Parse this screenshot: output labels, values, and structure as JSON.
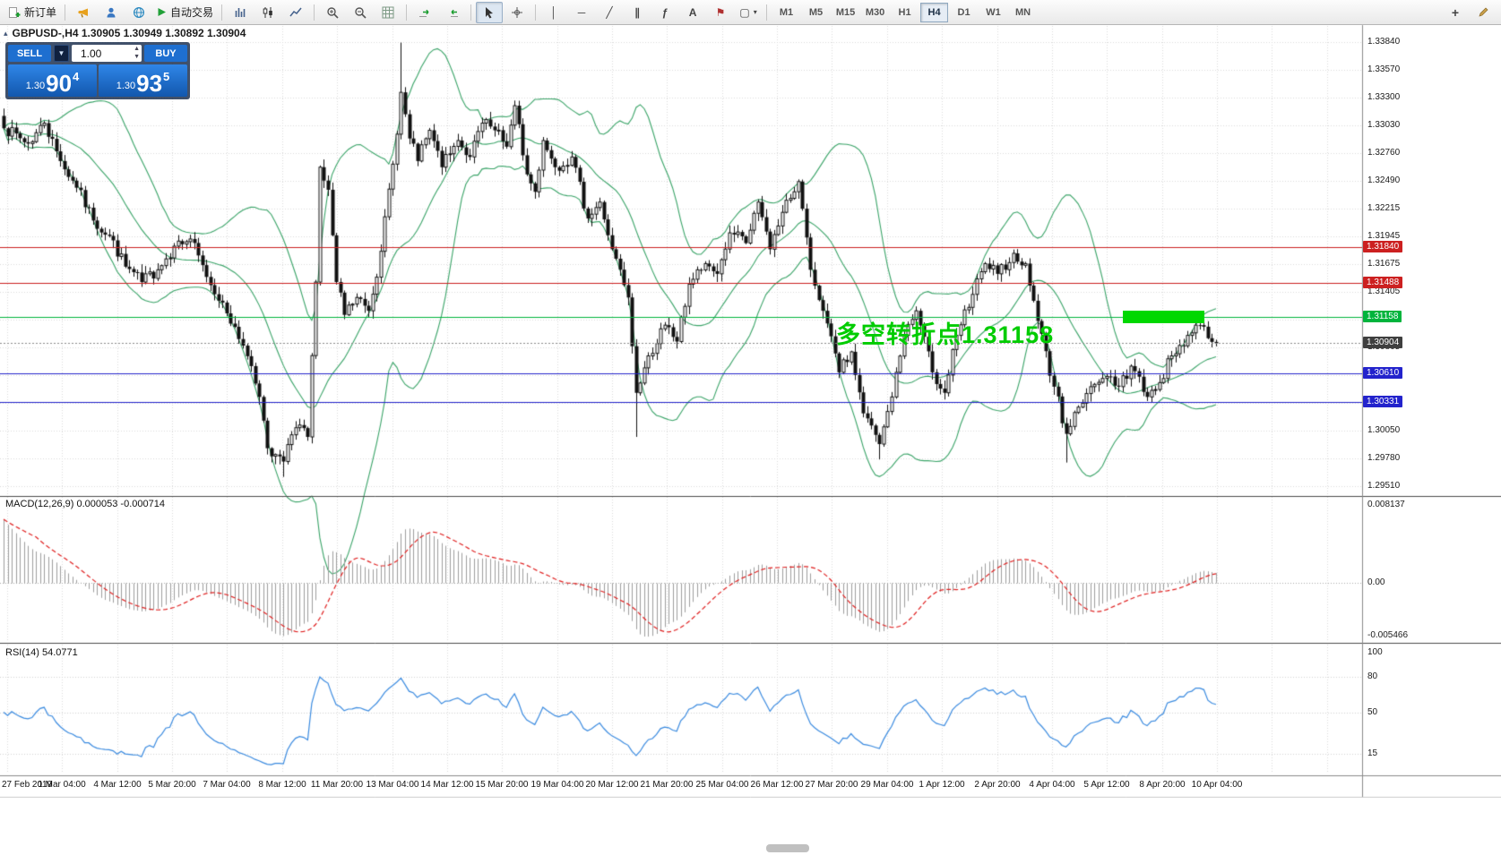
{
  "toolbar": {
    "new_order_label": "新订单",
    "autotrading_label": "自动交易",
    "timeframes": [
      "M1",
      "M5",
      "M15",
      "M30",
      "H1",
      "H4",
      "D1",
      "W1",
      "MN"
    ],
    "active_timeframe": "H4"
  },
  "one_click": {
    "sell_label": "SELL",
    "buy_label": "BUY",
    "volume": "1.00",
    "bid": {
      "prefix": "1.30",
      "big": "90",
      "sup": "4"
    },
    "ask": {
      "prefix": "1.30",
      "big": "93",
      "sup": "5"
    }
  },
  "chart_title": "GBPUSD-,H4 1.30905 1.30949 1.30892 1.30904",
  "chart_data": {
    "type": "candlestick",
    "symbol": "GBPUSD-",
    "timeframe": "H4",
    "ohlc": {
      "open": 1.30905,
      "high": 1.30949,
      "low": 1.30892,
      "close": 1.30904
    },
    "y_range": [
      1.2951,
      1.3384
    ],
    "y_ticks": [
      "1.33840",
      "1.33570",
      "1.33300",
      "1.33030",
      "1.32760",
      "1.32490",
      "1.32215",
      "1.31945",
      "1.31675",
      "1.31405",
      "1.31135",
      "1.30865",
      "1.30595",
      "1.30325",
      "1.30050",
      "1.29780",
      "1.29510"
    ],
    "x_labels": [
      "27 Feb 2019",
      "1 Mar 04:00",
      "4 Mar 12:00",
      "5 Mar 20:00",
      "7 Mar 04:00",
      "8 Mar 12:00",
      "11 Mar 20:00",
      "13 Mar 04:00",
      "14 Mar 12:00",
      "15 Mar 20:00",
      "19 Mar 04:00",
      "20 Mar 12:00",
      "21 Mar 20:00",
      "25 Mar 04:00",
      "26 Mar 12:00",
      "27 Mar 20:00",
      "29 Mar 04:00",
      "1 Apr 12:00",
      "2 Apr 20:00",
      "4 Apr 04:00",
      "5 Apr 12:00",
      "8 Apr 20:00",
      "10 Apr 04:00"
    ],
    "bars": 300,
    "close_anchors": [
      [
        0,
        1.33
      ],
      [
        6,
        1.3285
      ],
      [
        10,
        1.3305
      ],
      [
        14,
        1.3268
      ],
      [
        18,
        1.3242
      ],
      [
        22,
        1.321
      ],
      [
        26,
        1.3195
      ],
      [
        30,
        1.3165
      ],
      [
        34,
        1.315
      ],
      [
        38,
        1.3162
      ],
      [
        42,
        1.3185
      ],
      [
        46,
        1.3192
      ],
      [
        50,
        1.3155
      ],
      [
        54,
        1.313
      ],
      [
        59,
        1.3088
      ],
      [
        63,
        1.3038
      ],
      [
        65,
        1.2988
      ],
      [
        69,
        1.2975
      ],
      [
        72,
        1.3008
      ],
      [
        75,
        1.2999
      ],
      [
        77,
        1.315
      ],
      [
        78,
        1.3262
      ],
      [
        80,
        1.324
      ],
      [
        82,
        1.315
      ],
      [
        84,
        1.3118
      ],
      [
        87,
        1.3135
      ],
      [
        90,
        1.3122
      ],
      [
        93,
        1.318
      ],
      [
        96,
        1.3265
      ],
      [
        98,
        1.3335
      ],
      [
        100,
        1.329
      ],
      [
        102,
        1.3268
      ],
      [
        105,
        1.3298
      ],
      [
        108,
        1.3262
      ],
      [
        112,
        1.3288
      ],
      [
        115,
        1.3272
      ],
      [
        118,
        1.3305
      ],
      [
        121,
        1.3298
      ],
      [
        124,
        1.3282
      ],
      [
        126,
        1.3322
      ],
      [
        129,
        1.3255
      ],
      [
        131,
        1.3238
      ],
      [
        133,
        1.3288
      ],
      [
        136,
        1.3262
      ],
      [
        140,
        1.3272
      ],
      [
        144,
        1.3212
      ],
      [
        147,
        1.3228
      ],
      [
        150,
        1.3182
      ],
      [
        154,
        1.3135
      ],
      [
        156,
        1.3042
      ],
      [
        159,
        1.3078
      ],
      [
        163,
        1.3108
      ],
      [
        166,
        1.3092
      ],
      [
        169,
        1.3148
      ],
      [
        173,
        1.3168
      ],
      [
        176,
        1.3158
      ],
      [
        179,
        1.3198
      ],
      [
        183,
        1.3188
      ],
      [
        186,
        1.3228
      ],
      [
        189,
        1.3182
      ],
      [
        192,
        1.3218
      ],
      [
        196,
        1.3248
      ],
      [
        199,
        1.3162
      ],
      [
        202,
        1.3122
      ],
      [
        206,
        1.3062
      ],
      [
        209,
        1.3082
      ],
      [
        212,
        1.3022
      ],
      [
        216,
        1.2992
      ],
      [
        219,
        1.3038
      ],
      [
        222,
        1.3098
      ],
      [
        225,
        1.3122
      ],
      [
        229,
        1.3062
      ],
      [
        232,
        1.3042
      ],
      [
        235,
        1.3098
      ],
      [
        239,
        1.3138
      ],
      [
        242,
        1.3168
      ],
      [
        245,
        1.3158
      ],
      [
        249,
        1.3178
      ],
      [
        252,
        1.3168
      ],
      [
        255,
        1.3112
      ],
      [
        259,
        1.3048
      ],
      [
        262,
        1.3002
      ],
      [
        265,
        1.3028
      ],
      [
        268,
        1.3048
      ],
      [
        272,
        1.3058
      ],
      [
        275,
        1.3048
      ],
      [
        278,
        1.3068
      ],
      [
        282,
        1.3038
      ],
      [
        285,
        1.3052
      ],
      [
        288,
        1.3078
      ],
      [
        292,
        1.3098
      ],
      [
        295,
        1.3108
      ],
      [
        299,
        1.30904
      ]
    ],
    "extreme_wicks": [
      [
        69,
        "low",
        1.296
      ],
      [
        98,
        "high",
        1.33835
      ],
      [
        156,
        "low",
        1.2999
      ],
      [
        216,
        "low",
        1.2977
      ],
      [
        262,
        "low",
        1.2974
      ]
    ],
    "current_price": 1.30904,
    "current_price_label_color": "#3f3f3f",
    "levels": [
      {
        "price": 1.3184,
        "color": "#cc2020"
      },
      {
        "price": 1.31488,
        "color": "#cc2020"
      },
      {
        "price": 1.31158,
        "color": "#00b43c"
      },
      {
        "price": 1.3061,
        "color": "#2323cc"
      },
      {
        "price": 1.30331,
        "color": "#2323cc"
      }
    ],
    "highlight_rect": {
      "bar_start": 276,
      "bar_end": 296,
      "price_top": 1.31225,
      "price_bottom": 1.311,
      "color": "#00d800"
    },
    "annotation": {
      "text": "多空转折点1.31158",
      "color": "#00cc00"
    },
    "indicators": {
      "bollinger": {
        "label": "Bollinger Bands",
        "period": 20,
        "deviation": 2,
        "color": "#3aa468"
      },
      "macd": {
        "display_label": "MACD(12,26,9) 0.000053 -0.000714",
        "fast": 12,
        "slow": 26,
        "signal": 9,
        "scale_labels": [
          "0.008137",
          "0.00",
          "-0.005466"
        ],
        "range": [
          -0.005466,
          0.008137
        ],
        "histogram_color": "#9e9e9e",
        "signal_color": "#e02020"
      },
      "rsi": {
        "display_label": "RSI(14) 54.0771",
        "period": 14,
        "value": 54.0771,
        "scale_labels": [
          "100",
          "80",
          "50",
          "15"
        ],
        "color": "#3b8be0"
      }
    }
  }
}
